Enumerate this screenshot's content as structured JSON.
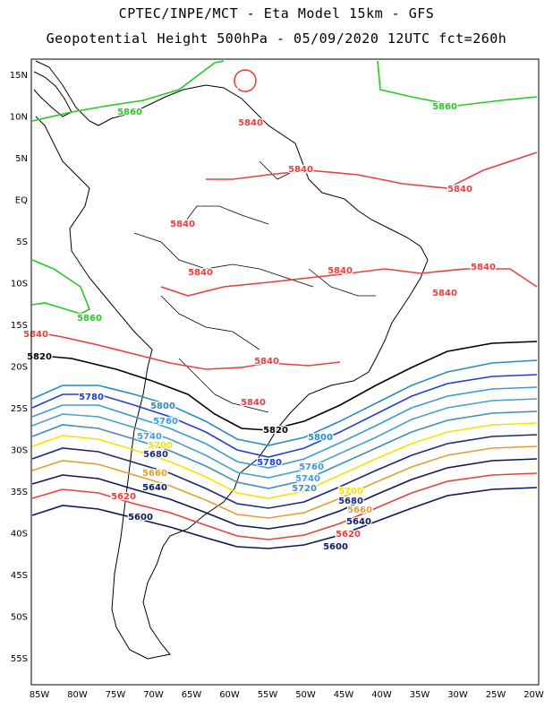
{
  "title_line1": "CPTEC/INPE/MCT -  Eta Model 15km - GFS",
  "title_line2": "Geopotential Height 500hPa - 05/09/2020 12UTC fct=260h",
  "lat_labels": [
    "15N",
    "10N",
    "5N",
    "EQ",
    "5S",
    "10S",
    "15S",
    "20S",
    "25S",
    "30S",
    "35S",
    "40S",
    "45S",
    "50S",
    "55S"
  ],
  "lon_labels": [
    "85W",
    "80W",
    "75W",
    "70W",
    "65W",
    "60W",
    "55W",
    "50W",
    "45W",
    "40W",
    "35W",
    "30W",
    "25W",
    "20W"
  ],
  "contours": [
    {
      "level": "5860",
      "color": "#22cc22",
      "labels": [
        "5860",
        "5860",
        "5860"
      ]
    },
    {
      "level": "5840",
      "color": "#e84040",
      "labels": [
        "5840",
        "5840",
        "5840",
        "5840",
        "5840",
        "5840",
        "5840",
        "5840",
        "5840",
        "5840",
        "5840"
      ]
    },
    {
      "level": "5820",
      "color": "#000000",
      "labels": [
        "5820",
        "5820"
      ]
    },
    {
      "level": "5800",
      "color": "#2b8cc4",
      "labels": [
        "5800",
        "5800"
      ]
    },
    {
      "level": "5780",
      "color": "#1f3fd6",
      "labels": [
        "5780",
        "5780"
      ]
    },
    {
      "level": "5760",
      "color": "#3d9ad0",
      "labels": [
        "5760",
        "5760"
      ]
    },
    {
      "level": "5740",
      "color": "#4aa0c8",
      "labels": [
        "5740",
        "5740"
      ]
    },
    {
      "level": "5720",
      "color": "#3d8fb8",
      "labels": [
        "5720"
      ]
    },
    {
      "level": "5700",
      "color": "#f2e600",
      "labels": [
        "5700",
        "5700"
      ]
    },
    {
      "level": "5680",
      "color": "#1a2a7a",
      "labels": [
        "5680",
        "5680"
      ]
    },
    {
      "level": "5660",
      "color": "#e0a030",
      "labels": [
        "5660",
        "5660"
      ]
    },
    {
      "level": "5640",
      "color": "#0a1a5a",
      "labels": [
        "5640",
        "5640"
      ]
    },
    {
      "level": "5620",
      "color": "#e84040",
      "labels": [
        "5620",
        "5620"
      ]
    },
    {
      "level": "5600",
      "color": "#0a1a5a",
      "labels": [
        "5600",
        "5600"
      ]
    }
  ]
}
